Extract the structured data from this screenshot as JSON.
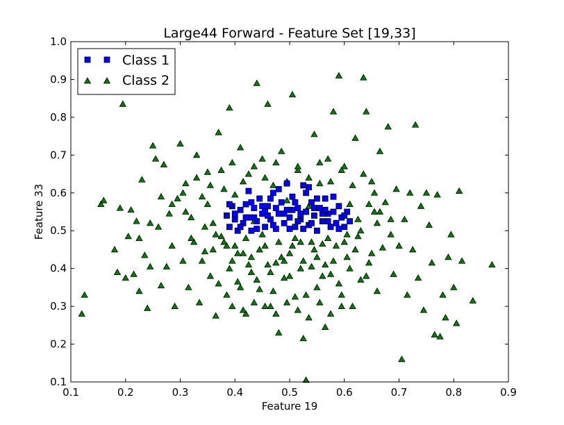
{
  "chart_data": {
    "type": "scatter",
    "title": "Large44 Forward - Feature Set [19,33]",
    "xlabel": "Feature 19",
    "ylabel": "Feature 33",
    "xlim": [
      0.1,
      0.9
    ],
    "ylim": [
      0.1,
      1.0
    ],
    "xticks": [
      "0.1",
      "0.2",
      "0.3",
      "0.4",
      "0.5",
      "0.6",
      "0.7",
      "0.8",
      "0.9"
    ],
    "yticks": [
      "0.1",
      "0.2",
      "0.3",
      "0.4",
      "0.5",
      "0.6",
      "0.7",
      "0.8",
      "0.9",
      "1.0"
    ],
    "grid": false,
    "legend_position": "top-left",
    "series": [
      {
        "name": "Class 1",
        "marker": "square",
        "color": "#0000ff",
        "points": [
          [
            0.385,
            0.54
          ],
          [
            0.39,
            0.51
          ],
          [
            0.395,
            0.565
          ],
          [
            0.4,
            0.53
          ],
          [
            0.405,
            0.5
          ],
          [
            0.41,
            0.555
          ],
          [
            0.415,
            0.52
          ],
          [
            0.42,
            0.57
          ],
          [
            0.425,
            0.535
          ],
          [
            0.43,
            0.5
          ],
          [
            0.435,
            0.56
          ],
          [
            0.44,
            0.525
          ],
          [
            0.445,
            0.585
          ],
          [
            0.45,
            0.545
          ],
          [
            0.455,
            0.51
          ],
          [
            0.46,
            0.565
          ],
          [
            0.465,
            0.53
          ],
          [
            0.47,
            0.6
          ],
          [
            0.475,
            0.505
          ],
          [
            0.48,
            0.545
          ],
          [
            0.485,
            0.575
          ],
          [
            0.49,
            0.52
          ],
          [
            0.495,
            0.555
          ],
          [
            0.5,
            0.535
          ],
          [
            0.505,
            0.59
          ],
          [
            0.51,
            0.51
          ],
          [
            0.515,
            0.56
          ],
          [
            0.52,
            0.53
          ],
          [
            0.525,
            0.62
          ],
          [
            0.53,
            0.55
          ],
          [
            0.535,
            0.515
          ],
          [
            0.54,
            0.575
          ],
          [
            0.545,
            0.54
          ],
          [
            0.55,
            0.5
          ],
          [
            0.555,
            0.56
          ],
          [
            0.56,
            0.525
          ],
          [
            0.565,
            0.585
          ],
          [
            0.57,
            0.545
          ],
          [
            0.575,
            0.51
          ],
          [
            0.58,
            0.55
          ],
          [
            0.585,
            0.52
          ],
          [
            0.59,
            0.565
          ],
          [
            0.595,
            0.535
          ],
          [
            0.6,
            0.51
          ],
          [
            0.605,
            0.55
          ],
          [
            0.61,
            0.525
          ],
          [
            0.39,
            0.57
          ],
          [
            0.4,
            0.545
          ],
          [
            0.41,
            0.51
          ],
          [
            0.42,
            0.535
          ],
          [
            0.43,
            0.575
          ],
          [
            0.44,
            0.505
          ],
          [
            0.45,
            0.565
          ],
          [
            0.46,
            0.54
          ],
          [
            0.47,
            0.515
          ],
          [
            0.48,
            0.61
          ],
          [
            0.49,
            0.545
          ],
          [
            0.5,
            0.505
          ],
          [
            0.51,
            0.575
          ],
          [
            0.52,
            0.545
          ],
          [
            0.53,
            0.6
          ],
          [
            0.54,
            0.52
          ],
          [
            0.55,
            0.585
          ],
          [
            0.56,
            0.545
          ],
          [
            0.57,
            0.525
          ],
          [
            0.58,
            0.59
          ],
          [
            0.59,
            0.505
          ],
          [
            0.6,
            0.54
          ],
          [
            0.425,
            0.605
          ],
          [
            0.495,
            0.625
          ],
          [
            0.535,
            0.615
          ],
          [
            0.465,
            0.585
          ],
          [
            0.505,
            0.555
          ],
          [
            0.515,
            0.525
          ],
          [
            0.545,
            0.56
          ],
          [
            0.455,
            0.55
          ],
          [
            0.475,
            0.56
          ],
          [
            0.435,
            0.535
          ],
          [
            0.565,
            0.555
          ],
          [
            0.525,
            0.505
          ]
        ]
      },
      {
        "name": "Class 2",
        "marker": "triangle",
        "color": "#007f00",
        "points": [
          [
            0.12,
            0.28
          ],
          [
            0.125,
            0.33
          ],
          [
            0.155,
            0.57
          ],
          [
            0.16,
            0.58
          ],
          [
            0.18,
            0.45
          ],
          [
            0.185,
            0.39
          ],
          [
            0.19,
            0.56
          ],
          [
            0.195,
            0.835
          ],
          [
            0.2,
            0.375
          ],
          [
            0.205,
            0.485
          ],
          [
            0.21,
            0.555
          ],
          [
            0.215,
            0.385
          ],
          [
            0.22,
            0.525
          ],
          [
            0.225,
            0.34
          ],
          [
            0.23,
            0.635
          ],
          [
            0.235,
            0.435
          ],
          [
            0.24,
            0.295
          ],
          [
            0.245,
            0.405
          ],
          [
            0.25,
            0.725
          ],
          [
            0.255,
            0.69
          ],
          [
            0.26,
            0.51
          ],
          [
            0.265,
            0.355
          ],
          [
            0.27,
            0.675
          ],
          [
            0.275,
            0.405
          ],
          [
            0.28,
            0.545
          ],
          [
            0.285,
            0.46
          ],
          [
            0.29,
            0.3
          ],
          [
            0.295,
            0.585
          ],
          [
            0.3,
            0.73
          ],
          [
            0.305,
            0.42
          ],
          [
            0.31,
            0.625
          ],
          [
            0.315,
            0.35
          ],
          [
            0.32,
            0.535
          ],
          [
            0.325,
            0.47
          ],
          [
            0.33,
            0.7
          ],
          [
            0.335,
            0.31
          ],
          [
            0.34,
            0.59
          ],
          [
            0.345,
            0.445
          ],
          [
            0.35,
            0.655
          ],
          [
            0.355,
            0.38
          ],
          [
            0.36,
            0.52
          ],
          [
            0.365,
            0.275
          ],
          [
            0.37,
            0.76
          ],
          [
            0.375,
            0.485
          ],
          [
            0.38,
            0.61
          ],
          [
            0.385,
            0.33
          ],
          [
            0.39,
            0.825
          ],
          [
            0.395,
            0.42
          ],
          [
            0.4,
            0.595
          ],
          [
            0.405,
            0.365
          ],
          [
            0.41,
            0.72
          ],
          [
            0.415,
            0.44
          ],
          [
            0.42,
            0.28
          ],
          [
            0.425,
            0.65
          ],
          [
            0.43,
            0.39
          ],
          [
            0.435,
            0.525
          ],
          [
            0.44,
            0.89
          ],
          [
            0.445,
            0.345
          ],
          [
            0.45,
            0.69
          ],
          [
            0.455,
            0.46
          ],
          [
            0.46,
            0.835
          ],
          [
            0.465,
            0.3
          ],
          [
            0.47,
            0.62
          ],
          [
            0.475,
            0.415
          ],
          [
            0.48,
            0.23
          ],
          [
            0.485,
            0.71
          ],
          [
            0.49,
            0.375
          ],
          [
            0.495,
            0.58
          ],
          [
            0.5,
            0.44
          ],
          [
            0.505,
            0.86
          ],
          [
            0.51,
            0.325
          ],
          [
            0.515,
            0.66
          ],
          [
            0.52,
            0.47
          ],
          [
            0.525,
            0.215
          ],
          [
            0.53,
            0.105
          ],
          [
            0.535,
            0.565
          ],
          [
            0.54,
            0.405
          ],
          [
            0.545,
            0.755
          ],
          [
            0.55,
            0.35
          ],
          [
            0.555,
            0.625
          ],
          [
            0.56,
            0.465
          ],
          [
            0.565,
            0.245
          ],
          [
            0.57,
            0.69
          ],
          [
            0.575,
            0.385
          ],
          [
            0.58,
            0.815
          ],
          [
            0.585,
            0.52
          ],
          [
            0.59,
            0.91
          ],
          [
            0.595,
            0.33
          ],
          [
            0.6,
            0.67
          ],
          [
            0.605,
            0.43
          ],
          [
            0.61,
            0.57
          ],
          [
            0.615,
            0.3
          ],
          [
            0.62,
            0.745
          ],
          [
            0.625,
            0.485
          ],
          [
            0.63,
            0.37
          ],
          [
            0.635,
            0.905
          ],
          [
            0.64,
            0.815
          ],
          [
            0.645,
            0.415
          ],
          [
            0.65,
            0.63
          ],
          [
            0.655,
            0.55
          ],
          [
            0.66,
            0.34
          ],
          [
            0.665,
            0.71
          ],
          [
            0.67,
            0.455
          ],
          [
            0.675,
            0.575
          ],
          [
            0.68,
            0.775
          ],
          [
            0.685,
            0.49
          ],
          [
            0.69,
            0.385
          ],
          [
            0.695,
            0.61
          ],
          [
            0.7,
            0.46
          ],
          [
            0.705,
            0.16
          ],
          [
            0.71,
            0.53
          ],
          [
            0.715,
            0.33
          ],
          [
            0.72,
            0.6
          ],
          [
            0.725,
            0.45
          ],
          [
            0.73,
            0.78
          ],
          [
            0.735,
            0.375
          ],
          [
            0.74,
            0.565
          ],
          [
            0.745,
            0.29
          ],
          [
            0.75,
            0.6
          ],
          [
            0.755,
            0.515
          ],
          [
            0.76,
            0.415
          ],
          [
            0.765,
            0.225
          ],
          [
            0.77,
            0.595
          ],
          [
            0.775,
            0.22
          ],
          [
            0.78,
            0.33
          ],
          [
            0.785,
            0.27
          ],
          [
            0.79,
            0.43
          ],
          [
            0.795,
            0.49
          ],
          [
            0.8,
            0.35
          ],
          [
            0.805,
            0.255
          ],
          [
            0.81,
            0.605
          ],
          [
            0.815,
            0.42
          ],
          [
            0.835,
            0.315
          ],
          [
            0.87,
            0.41
          ],
          [
            0.31,
            0.55
          ],
          [
            0.32,
            0.48
          ],
          [
            0.33,
            0.64
          ],
          [
            0.34,
            0.42
          ],
          [
            0.35,
            0.57
          ],
          [
            0.36,
            0.45
          ],
          [
            0.37,
            0.36
          ],
          [
            0.38,
            0.47
          ],
          [
            0.39,
            0.4
          ],
          [
            0.4,
            0.46
          ],
          [
            0.41,
            0.35
          ],
          [
            0.42,
            0.48
          ],
          [
            0.43,
            0.43
          ],
          [
            0.44,
            0.37
          ],
          [
            0.45,
            0.49
          ],
          [
            0.46,
            0.41
          ],
          [
            0.47,
            0.34
          ],
          [
            0.48,
            0.47
          ],
          [
            0.49,
            0.42
          ],
          [
            0.5,
            0.38
          ],
          [
            0.51,
            0.48
          ],
          [
            0.52,
            0.4
          ],
          [
            0.53,
            0.33
          ],
          [
            0.54,
            0.47
          ],
          [
            0.55,
            0.43
          ],
          [
            0.56,
            0.38
          ],
          [
            0.57,
            0.48
          ],
          [
            0.58,
            0.42
          ],
          [
            0.59,
            0.36
          ],
          [
            0.6,
            0.47
          ],
          [
            0.61,
            0.4
          ],
          [
            0.62,
            0.45
          ],
          [
            0.63,
            0.5
          ],
          [
            0.64,
            0.38
          ],
          [
            0.65,
            0.44
          ],
          [
            0.66,
            0.52
          ],
          [
            0.355,
            0.62
          ],
          [
            0.375,
            0.66
          ],
          [
            0.395,
            0.68
          ],
          [
            0.415,
            0.63
          ],
          [
            0.435,
            0.67
          ],
          [
            0.455,
            0.64
          ],
          [
            0.475,
            0.68
          ],
          [
            0.495,
            0.63
          ],
          [
            0.515,
            0.67
          ],
          [
            0.535,
            0.64
          ],
          [
            0.555,
            0.68
          ],
          [
            0.575,
            0.63
          ],
          [
            0.595,
            0.66
          ],
          [
            0.615,
            0.62
          ],
          [
            0.635,
            0.65
          ],
          [
            0.655,
            0.6
          ],
          [
            0.345,
            0.51
          ],
          [
            0.365,
            0.49
          ],
          [
            0.385,
            0.46
          ],
          [
            0.405,
            0.44
          ],
          [
            0.425,
            0.41
          ],
          [
            0.445,
            0.45
          ],
          [
            0.465,
            0.39
          ],
          [
            0.485,
            0.43
          ],
          [
            0.505,
            0.46
          ],
          [
            0.525,
            0.42
          ],
          [
            0.545,
            0.45
          ],
          [
            0.565,
            0.41
          ],
          [
            0.585,
            0.46
          ],
          [
            0.605,
            0.49
          ],
          [
            0.625,
            0.53
          ],
          [
            0.645,
            0.57
          ],
          [
            0.665,
            0.55
          ],
          [
            0.685,
            0.53
          ],
          [
            0.305,
            0.6
          ],
          [
            0.285,
            0.57
          ],
          [
            0.265,
            0.59
          ],
          [
            0.245,
            0.52
          ],
          [
            0.225,
            0.48
          ],
          [
            0.455,
            0.3
          ],
          [
            0.475,
            0.28
          ],
          [
            0.495,
            0.31
          ],
          [
            0.515,
            0.29
          ],
          [
            0.535,
            0.27
          ],
          [
            0.555,
            0.31
          ],
          [
            0.575,
            0.28
          ],
          [
            0.595,
            0.3
          ],
          [
            0.415,
            0.29
          ],
          [
            0.435,
            0.31
          ],
          [
            0.395,
            0.3
          ]
        ]
      }
    ]
  }
}
